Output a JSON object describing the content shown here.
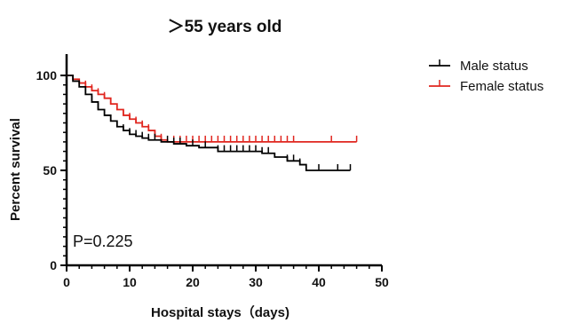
{
  "chart_data": {
    "type": "line",
    "subtype": "kaplan-meier",
    "title": "＞55 years old",
    "xlabel": "Hospital stays（days)",
    "ylabel": "Percent survival",
    "xlim": [
      0,
      50
    ],
    "ylim": [
      0,
      100
    ],
    "xticks": [
      "0",
      "10",
      "20",
      "30",
      "40",
      "50"
    ],
    "yticks": [
      "0",
      "50",
      "100"
    ],
    "grid": false,
    "legend_position": "right",
    "annotation": "P=0.225",
    "series": [
      {
        "name": "Male status",
        "color": "#000000",
        "steps": [
          [
            0,
            100
          ],
          [
            1,
            97
          ],
          [
            2,
            94
          ],
          [
            3,
            90
          ],
          [
            4,
            86
          ],
          [
            5,
            82
          ],
          [
            6,
            79
          ],
          [
            7,
            76
          ],
          [
            8,
            73
          ],
          [
            9,
            71
          ],
          [
            10,
            69
          ],
          [
            11,
            68
          ],
          [
            12,
            67
          ],
          [
            13,
            66
          ],
          [
            15,
            65
          ],
          [
            17,
            64
          ],
          [
            19,
            63
          ],
          [
            21,
            62
          ],
          [
            24,
            60
          ],
          [
            31,
            59
          ],
          [
            33,
            57
          ],
          [
            35,
            55
          ],
          [
            37,
            53
          ],
          [
            38,
            50
          ],
          [
            45,
            50
          ]
        ],
        "censored": [
          3,
          4,
          5,
          7,
          8,
          9,
          10,
          11,
          12,
          13,
          14,
          16,
          17,
          18,
          20,
          22,
          24,
          25,
          26,
          27,
          28,
          29,
          30,
          31,
          32,
          35,
          36,
          37,
          40,
          43,
          45
        ]
      },
      {
        "name": "Female status",
        "color": "#e0261f",
        "steps": [
          [
            0,
            100
          ],
          [
            1,
            98
          ],
          [
            2,
            96
          ],
          [
            3,
            94
          ],
          [
            4,
            92
          ],
          [
            5,
            90
          ],
          [
            6,
            88
          ],
          [
            7,
            85
          ],
          [
            8,
            82
          ],
          [
            9,
            79
          ],
          [
            10,
            77
          ],
          [
            11,
            75
          ],
          [
            12,
            73
          ],
          [
            13,
            71
          ],
          [
            14,
            68
          ],
          [
            15,
            66
          ],
          [
            16,
            65
          ],
          [
            46,
            65
          ]
        ],
        "censored": [
          3,
          4,
          5,
          6,
          7,
          8,
          9,
          10,
          11,
          12,
          13,
          14,
          15,
          17,
          18,
          19,
          20,
          21,
          22,
          23,
          24,
          25,
          26,
          27,
          28,
          29,
          30,
          31,
          32,
          33,
          34,
          35,
          36,
          42,
          46
        ]
      }
    ]
  }
}
